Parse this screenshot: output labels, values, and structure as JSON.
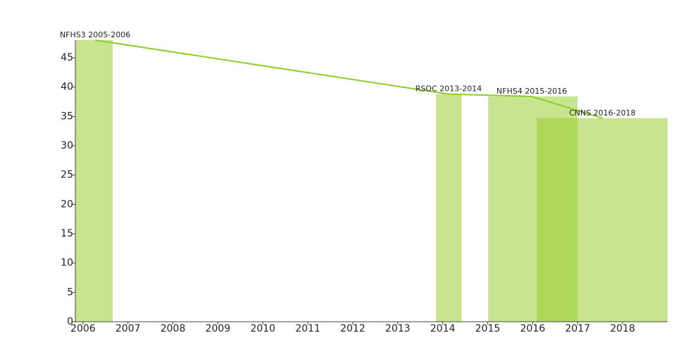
{
  "chart_data": {
    "type": "bar",
    "categories": [
      "NFHS3 2005-2006",
      "RSOC 2013-2014",
      "NFHS4 2015-2016",
      "CNNS 2016-2018"
    ],
    "values": [
      48,
      38.8,
      38.4,
      34.7
    ],
    "x_start": [
      2005.83,
      2013.85,
      2015.01,
      2016.09
    ],
    "x_end": [
      2006.66,
      2014.42,
      2017.0,
      2019.0
    ],
    "line_x": [
      2006.27,
      2014.13,
      2015.98,
      2017.55
    ],
    "color": "#9acd32",
    "line_color": "#8ccc2c",
    "xlim": [
      2005.83,
      2019.0
    ],
    "ylim": [
      0,
      48
    ],
    "xticks": [
      2006,
      2007,
      2008,
      2009,
      2010,
      2011,
      2012,
      2013,
      2014,
      2015,
      2016,
      2017,
      2018
    ],
    "yticks": [
      0,
      5,
      10,
      15,
      20,
      25,
      30,
      35,
      40,
      45
    ]
  }
}
